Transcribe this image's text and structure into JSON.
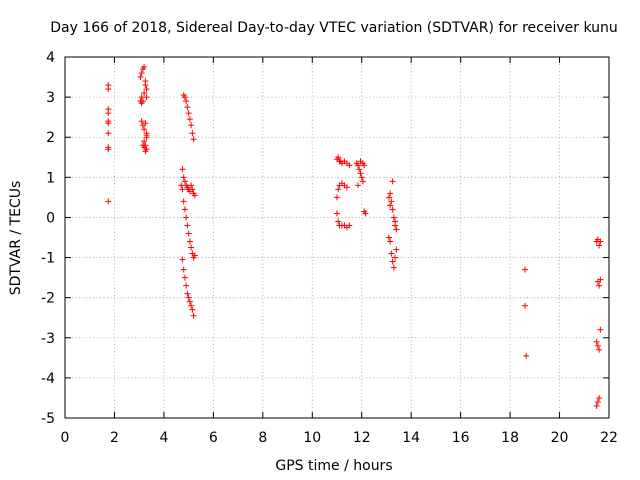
{
  "chart_data": {
    "type": "scatter",
    "title": "Day 166 of 2018, Sidereal Day-to-day VTEC variation (SDTVAR) for receiver kunu",
    "xlabel": "GPS time / hours",
    "ylabel": "SDTVAR / TECUs",
    "xlim": [
      0,
      22
    ],
    "ylim": [
      -5,
      4
    ],
    "xticks": [
      "0",
      "2",
      "4",
      "6",
      "8",
      "10",
      "12",
      "14",
      "16",
      "18",
      "20",
      "22"
    ],
    "yticks": [
      "-5",
      "-4",
      "-3",
      "-2",
      "-1",
      "0",
      "1",
      "2",
      "3",
      "4"
    ],
    "grid": true,
    "marker": "+",
    "color": "#ff0000",
    "series": [
      {
        "x": [
          1.75,
          1.75,
          1.75,
          1.75,
          1.75,
          1.75,
          1.75,
          1.75,
          1.75,
          1.75,
          3.05,
          3.1,
          3.15,
          3.2,
          3.25,
          3.3,
          3.1,
          3.15,
          3.2,
          3.25,
          3.3,
          3.1,
          3.15,
          3.2,
          3.25,
          3.3,
          3.2,
          3.25,
          3.3,
          3.3,
          3.05,
          3.1,
          3.15,
          3.2,
          3.25,
          3.3,
          4.8,
          4.85,
          4.9,
          4.95,
          5.0,
          5.05,
          5.1,
          5.15,
          5.2,
          4.7,
          4.75,
          4.8,
          4.85,
          4.9,
          4.95,
          5.0,
          5.05,
          5.1,
          5.15,
          5.2,
          5.25,
          4.75,
          4.8,
          4.85,
          4.9,
          4.95,
          5.0,
          5.05,
          5.1,
          5.15,
          5.2,
          5.25,
          4.75,
          4.8,
          4.85,
          4.9,
          4.95,
          5.0,
          5.05,
          5.1,
          5.15,
          5.2,
          11.0,
          11.05,
          11.1,
          11.15,
          11.2,
          11.3,
          11.4,
          11.5,
          11.0,
          11.05,
          11.1,
          11.2,
          11.3,
          11.4,
          11.0,
          11.05,
          11.1,
          11.2,
          11.3,
          11.4,
          11.5,
          11.8,
          11.85,
          11.9,
          11.95,
          12.0,
          12.05,
          12.1,
          11.85,
          11.95,
          12.05,
          12.1,
          12.15,
          13.1,
          13.15,
          13.2,
          13.25,
          13.3,
          13.35,
          13.4,
          13.1,
          13.15,
          13.2,
          13.25,
          13.3,
          13.35,
          13.4,
          13.15,
          13.25,
          13.35,
          18.6,
          18.6,
          18.65,
          21.5,
          21.55,
          21.6,
          21.65,
          21.55,
          21.6,
          21.65,
          21.5,
          21.55,
          21.6,
          21.65,
          21.5,
          21.55,
          21.6
        ],
        "y": [
          3.3,
          3.2,
          2.7,
          2.6,
          2.4,
          2.35,
          2.1,
          1.75,
          1.7,
          0.4,
          3.5,
          3.6,
          3.7,
          3.75,
          3.4,
          3.2,
          3.0,
          2.9,
          3.1,
          3.3,
          3.0,
          2.4,
          2.3,
          2.2,
          2.35,
          2.0,
          1.9,
          1.8,
          1.7,
          2.05,
          2.9,
          2.85,
          1.8,
          1.75,
          1.65,
          2.1,
          3.05,
          3.0,
          2.9,
          2.75,
          2.6,
          2.45,
          2.3,
          2.1,
          1.95,
          0.8,
          1.2,
          1.0,
          0.9,
          0.8,
          0.75,
          0.7,
          0.65,
          0.8,
          0.7,
          0.6,
          0.55,
          0.7,
          0.4,
          0.2,
          0.0,
          -0.2,
          -0.4,
          -0.6,
          -0.75,
          -0.9,
          -1.0,
          -0.95,
          -1.05,
          -1.3,
          -1.5,
          -1.7,
          -1.9,
          -2.0,
          -2.1,
          -2.2,
          -2.3,
          -2.45,
          1.45,
          1.5,
          1.4,
          1.4,
          1.35,
          1.4,
          1.35,
          1.3,
          0.5,
          0.7,
          0.8,
          0.85,
          0.8,
          0.75,
          0.1,
          -0.1,
          -0.2,
          -0.2,
          -0.2,
          -0.25,
          -0.2,
          1.35,
          1.3,
          1.2,
          1.1,
          1.0,
          0.9,
          1.3,
          0.8,
          1.4,
          1.35,
          0.15,
          0.1,
          0.5,
          0.6,
          0.4,
          0.2,
          0.0,
          -0.2,
          -0.3,
          -0.5,
          -0.6,
          -0.9,
          -1.1,
          -1.25,
          -1.0,
          -0.8,
          0.3,
          0.9,
          -0.1,
          -1.3,
          -2.2,
          -3.45,
          -0.6,
          -0.55,
          -0.7,
          -0.6,
          -1.6,
          -1.7,
          -1.55,
          -3.1,
          -3.2,
          -3.3,
          -2.8,
          -4.7,
          -4.6,
          -4.5
        ]
      }
    ]
  }
}
